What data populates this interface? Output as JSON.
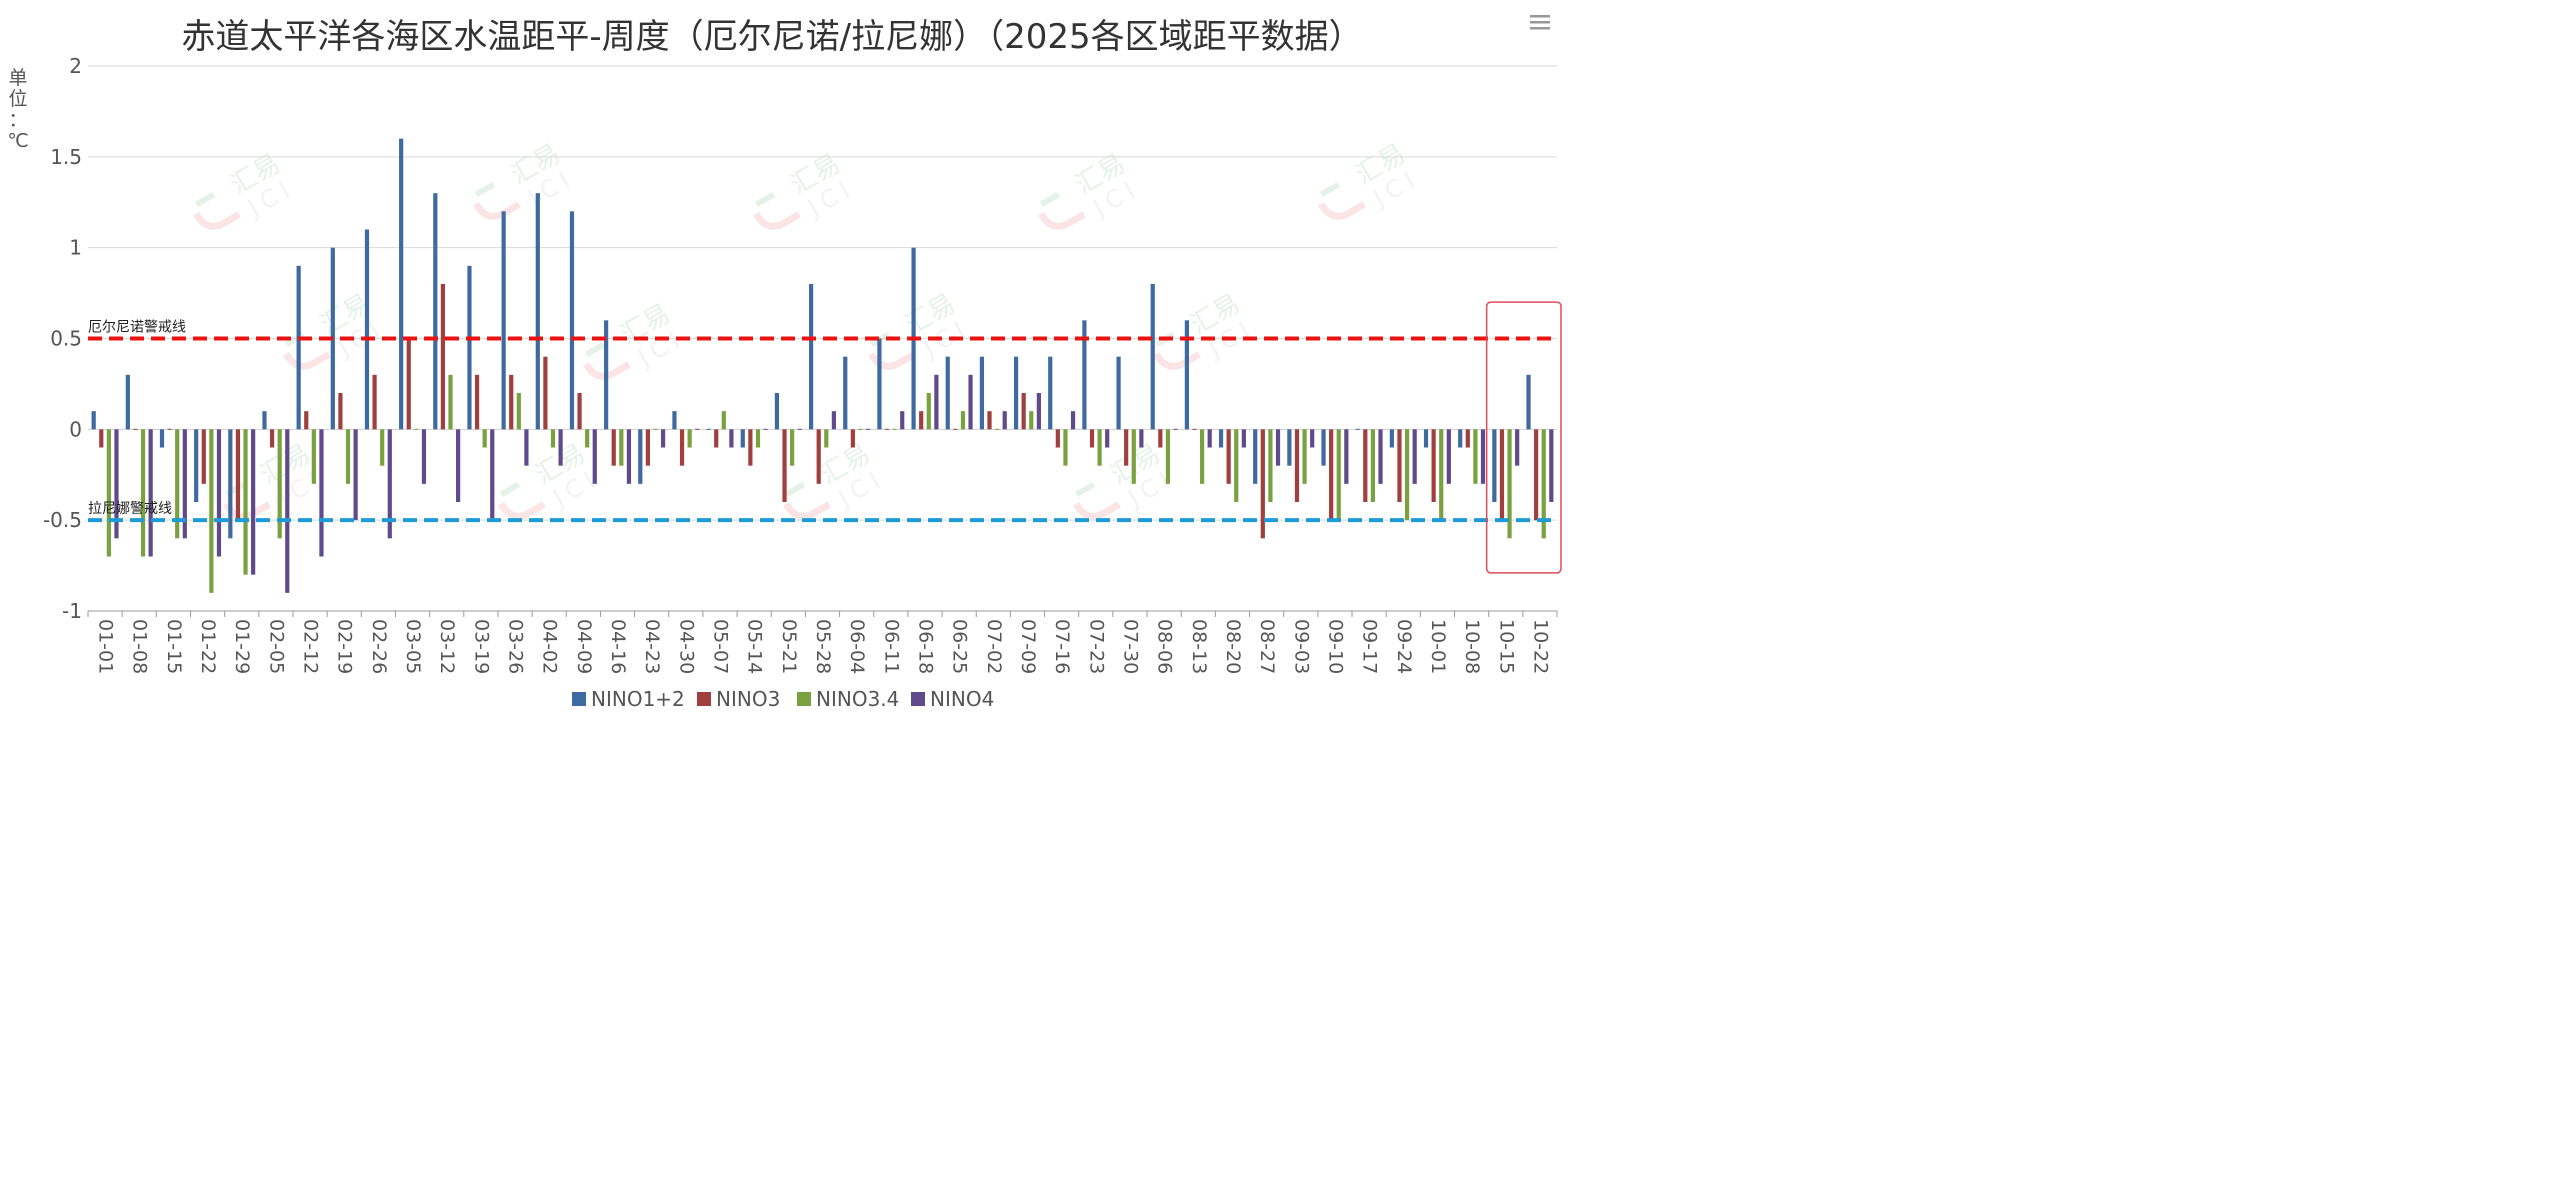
{
  "chart_data": {
    "type": "bar",
    "title": "赤道太平洋各海区水温距平-周度（厄尔尼诺/拉尼娜）（2025各区域距平数据）",
    "ylabel": "单位：℃",
    "ylim": [
      -1,
      2
    ],
    "yticks": [
      2,
      1.5,
      1,
      0.5,
      0,
      -0.5,
      -1
    ],
    "ytick_labels": [
      "2",
      "1.5",
      "1",
      "0.5",
      "0",
      "-0.5",
      "-1"
    ],
    "grid": true,
    "legend_position": "bottom-center",
    "categories": [
      "01-01",
      "01-08",
      "01-15",
      "01-22",
      "01-29",
      "02-05",
      "02-12",
      "02-19",
      "02-26",
      "03-05",
      "03-12",
      "03-19",
      "03-26",
      "04-02",
      "04-09",
      "04-16",
      "04-23",
      "04-30",
      "05-07",
      "05-14",
      "05-21",
      "05-28",
      "06-04",
      "06-11",
      "06-18",
      "06-25",
      "07-02",
      "07-09",
      "07-16",
      "07-23",
      "07-30",
      "08-06",
      "08-13",
      "08-20",
      "08-27",
      "09-03",
      "09-10",
      "09-17",
      "09-24",
      "10-01",
      "10-08",
      "10-15",
      "10-22"
    ],
    "series": [
      {
        "name": "NINO1+2",
        "color": "#3f6aa1",
        "values": [
          0.1,
          0.3,
          -0.1,
          -0.4,
          -0.6,
          0.1,
          0.9,
          1.0,
          1.1,
          1.6,
          1.3,
          0.9,
          1.2,
          1.3,
          1.2,
          0.6,
          -0.3,
          0.1,
          0.0,
          -0.1,
          0.2,
          0.8,
          0.4,
          0.5,
          1.0,
          0.4,
          0.4,
          0.4,
          0.4,
          0.6,
          0.4,
          0.8,
          0.6,
          -0.1,
          -0.3,
          -0.2,
          -0.2,
          0.0,
          -0.1,
          -0.1,
          -0.1,
          -0.4,
          0.3
        ]
      },
      {
        "name": "NINO3",
        "color": "#a13f3f",
        "values": [
          -0.1,
          0.0,
          0.0,
          -0.3,
          -0.5,
          -0.1,
          0.1,
          0.2,
          0.3,
          0.5,
          0.8,
          0.3,
          0.3,
          0.4,
          0.2,
          -0.2,
          -0.2,
          -0.2,
          -0.1,
          -0.2,
          -0.4,
          -0.3,
          -0.1,
          0.0,
          0.1,
          0.0,
          0.1,
          0.2,
          -0.1,
          -0.1,
          -0.2,
          -0.1,
          0.0,
          -0.3,
          -0.6,
          -0.4,
          -0.5,
          -0.4,
          -0.4,
          -0.4,
          -0.1,
          -0.5,
          -0.5
        ]
      },
      {
        "name": "NINO3.4",
        "color": "#79a13f",
        "values": [
          -0.7,
          -0.7,
          -0.6,
          -0.9,
          -0.8,
          -0.6,
          -0.3,
          -0.3,
          -0.2,
          0.0,
          0.3,
          -0.1,
          0.2,
          -0.1,
          -0.1,
          -0.2,
          0.0,
          -0.1,
          0.1,
          -0.1,
          -0.2,
          -0.1,
          0.0,
          0.0,
          0.2,
          0.1,
          0.0,
          0.1,
          -0.2,
          -0.2,
          -0.3,
          -0.3,
          -0.3,
          -0.4,
          -0.4,
          -0.3,
          -0.5,
          -0.4,
          -0.5,
          -0.5,
          -0.3,
          -0.6,
          -0.6
        ]
      },
      {
        "name": "NINO4",
        "color": "#5f4a8b",
        "values": [
          -0.6,
          -0.7,
          -0.6,
          -0.7,
          -0.8,
          -0.9,
          -0.7,
          -0.5,
          -0.6,
          -0.3,
          -0.4,
          -0.5,
          -0.2,
          -0.2,
          -0.3,
          -0.3,
          -0.1,
          0.0,
          -0.1,
          0.0,
          0.0,
          0.1,
          0.0,
          0.1,
          0.3,
          0.3,
          0.1,
          0.2,
          0.1,
          -0.1,
          -0.1,
          0.0,
          -0.1,
          -0.1,
          -0.2,
          -0.1,
          -0.3,
          -0.3,
          -0.3,
          -0.3,
          -0.3,
          -0.2,
          -0.4
        ]
      }
    ],
    "reference_lines": [
      {
        "name": "厄尔尼诺警戒线",
        "value": 0.5,
        "color": "#ee1111"
      },
      {
        "name": "拉尼娜警戒线",
        "value": -0.5,
        "color": "#1e9ad6"
      }
    ],
    "highlight_box": {
      "from_category": "10-15",
      "to_category": "10-22",
      "color": "#e04a5a"
    }
  },
  "watermark": {
    "text": "汇易",
    "subtext": "JCI"
  },
  "menu_icon": "hamburger-menu-icon"
}
